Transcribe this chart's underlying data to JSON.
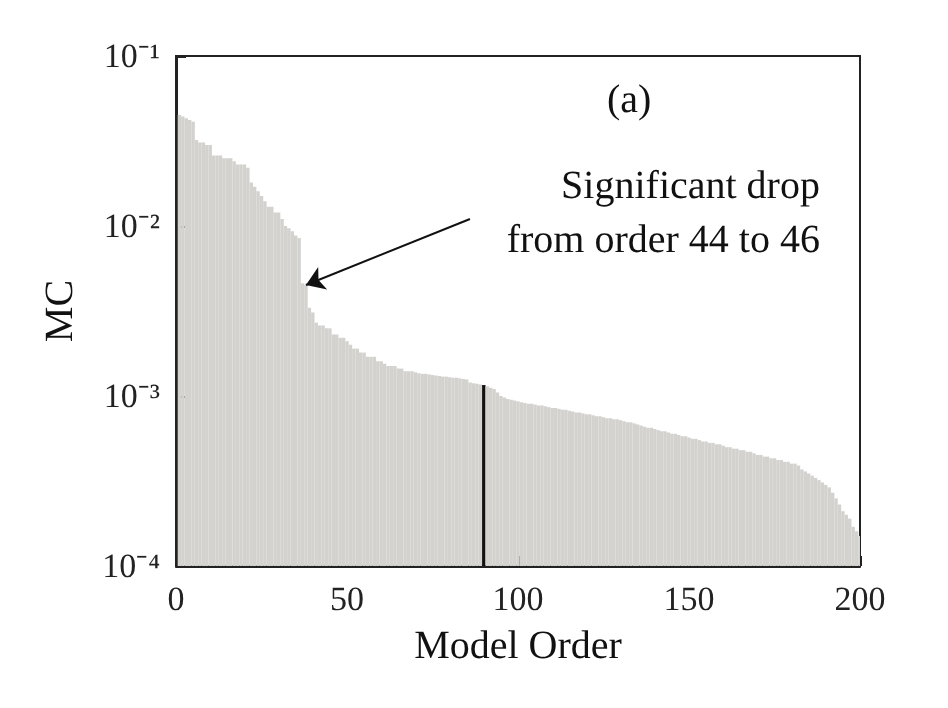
{
  "chart_data": {
    "type": "bar",
    "xlabel": "Model Order",
    "ylabel": "MC",
    "annotations": [
      "(a)",
      {
        "text": "Significant drop\nfrom order 44 to 46",
        "x": 38,
        "y": 0.0045
      }
    ],
    "x": [
      1,
      2,
      3,
      4,
      5,
      6,
      7,
      8,
      9,
      10,
      11,
      12,
      13,
      14,
      15,
      16,
      17,
      18,
      19,
      20,
      21,
      22,
      23,
      24,
      25,
      26,
      27,
      28,
      29,
      30,
      31,
      32,
      33,
      34,
      35,
      36,
      37,
      38,
      39,
      40,
      41,
      42,
      43,
      44,
      45,
      46,
      47,
      48,
      49,
      50,
      51,
      52,
      53,
      54,
      55,
      56,
      57,
      58,
      59,
      60,
      61,
      62,
      63,
      64,
      65,
      66,
      67,
      68,
      69,
      70,
      71,
      72,
      73,
      74,
      75,
      76,
      77,
      78,
      79,
      80,
      81,
      82,
      83,
      84,
      85,
      86,
      87,
      88,
      89,
      90,
      91,
      92,
      93,
      94,
      95,
      96,
      97,
      98,
      99,
      100,
      101,
      102,
      103,
      104,
      105,
      106,
      107,
      108,
      109,
      110,
      111,
      112,
      113,
      114,
      115,
      116,
      117,
      118,
      119,
      120,
      121,
      122,
      123,
      124,
      125,
      126,
      127,
      128,
      129,
      130,
      131,
      132,
      133,
      134,
      135,
      136,
      137,
      138,
      139,
      140,
      141,
      142,
      143,
      144,
      145,
      146,
      147,
      148,
      149,
      150,
      151,
      152,
      153,
      154,
      155,
      156,
      157,
      158,
      159,
      160,
      161,
      162,
      163,
      164,
      165,
      166,
      167,
      168,
      169,
      170,
      171,
      172,
      173,
      174,
      175,
      176,
      177,
      178,
      179,
      180,
      181,
      182,
      183,
      184,
      185,
      186,
      187,
      188,
      189,
      190,
      191,
      192,
      193,
      194,
      195,
      196,
      197,
      198,
      199,
      200
    ],
    "values": [
      0.045,
      0.044,
      0.043,
      0.042,
      0.041,
      0.032,
      0.031,
      0.031,
      0.03,
      0.03,
      0.026,
      0.026,
      0.026,
      0.025,
      0.025,
      0.025,
      0.024,
      0.023,
      0.023,
      0.023,
      0.022,
      0.018,
      0.017,
      0.016,
      0.015,
      0.014,
      0.013,
      0.013,
      0.012,
      0.012,
      0.011,
      0.01,
      0.0097,
      0.0093,
      0.0088,
      0.0085,
      0.0046,
      0.0045,
      0.0033,
      0.0031,
      0.0027,
      0.0026,
      0.0026,
      0.0025,
      0.0025,
      0.0023,
      0.0023,
      0.0022,
      0.0022,
      0.0021,
      0.002,
      0.0019,
      0.0019,
      0.0018,
      0.0018,
      0.0017,
      0.0017,
      0.0017,
      0.0016,
      0.0016,
      0.00155,
      0.0015,
      0.0015,
      0.0015,
      0.00145,
      0.00145,
      0.0014,
      0.0014,
      0.0014,
      0.00138,
      0.00136,
      0.00135,
      0.00135,
      0.00134,
      0.00133,
      0.00132,
      0.00131,
      0.0013,
      0.0013,
      0.00129,
      0.00128,
      0.00128,
      0.00127,
      0.00126,
      0.00125,
      0.0012,
      0.00119,
      0.00118,
      0.00117,
      0.00116,
      0.00114,
      0.00112,
      0.0011,
      0.00105,
      0.001,
      0.00098,
      0.00096,
      0.00095,
      0.00094,
      0.00093,
      0.00092,
      0.00091,
      0.0009,
      0.0009,
      0.00089,
      0.00088,
      0.00088,
      0.00087,
      0.00086,
      0.00085,
      0.00085,
      0.00084,
      0.00083,
      0.00083,
      0.00082,
      0.00081,
      0.0008,
      0.0008,
      0.00079,
      0.00078,
      0.00078,
      0.00077,
      0.00076,
      0.00076,
      0.00075,
      0.00074,
      0.00074,
      0.00073,
      0.00073,
      0.00072,
      0.00071,
      0.0007,
      0.0007,
      0.00069,
      0.00068,
      0.00067,
      0.00066,
      0.00065,
      0.00065,
      0.00064,
      0.00063,
      0.00062,
      0.00062,
      0.00061,
      0.0006,
      0.0006,
      0.00059,
      0.00058,
      0.00058,
      0.00057,
      0.00056,
      0.00056,
      0.00055,
      0.00054,
      0.00054,
      0.00053,
      0.00053,
      0.00052,
      0.00052,
      0.00051,
      0.0005,
      0.0005,
      0.00049,
      0.00049,
      0.00048,
      0.00048,
      0.00047,
      0.00047,
      0.00046,
      0.00045,
      0.00045,
      0.00044,
      0.00044,
      0.00043,
      0.00043,
      0.00042,
      0.00042,
      0.00041,
      0.00041,
      0.0004,
      0.0004,
      0.00039,
      0.00037,
      0.00036,
      0.00035,
      0.00034,
      0.00033,
      0.00032,
      0.00031,
      0.0003,
      0.00029,
      0.00027,
      0.00025,
      0.00023,
      0.00021,
      0.0002,
      0.00019,
      0.00017,
      0.00016,
      0.00015
    ],
    "colors": [
      "#d4d2ce",
      "#d4d2ce",
      "#d4d2ce",
      "#d4d2ce",
      "#d4d2ce",
      "#d4d2ce",
      "#d4d2ce",
      "#d4d2ce",
      "#d4d2ce",
      "#d4d2ce",
      "#d4d2ce",
      "#d4d2ce",
      "#d4d2ce",
      "#d4d2ce",
      "#d4d2ce",
      "#d4d2ce",
      "#d4d2ce",
      "#d4d2ce",
      "#d4d2ce",
      "#d4d2ce",
      "#d4d2ce",
      "#d4d2ce",
      "#d4d2ce",
      "#d4d2ce",
      "#d4d2ce",
      "#d4d2ce",
      "#d4d2ce",
      "#d4d2ce",
      "#d4d2ce",
      "#d4d2ce",
      "#d4d2ce",
      "#d4d2ce",
      "#d4d2ce",
      "#d4d2ce",
      "#d4d2ce",
      "#d4d2ce",
      "#d4d2ce",
      "#d4d2ce",
      "#d4d2ce",
      "#d4d2ce",
      "#d4d2ce",
      "#d4d2ce",
      "#d4d2ce",
      "#d4d2ce",
      "#d4d2ce",
      "#d4d2ce",
      "#d4d2ce",
      "#d4d2ce",
      "#d4d2ce",
      "#d4d2ce",
      "#d4d2ce",
      "#d4d2ce",
      "#d4d2ce",
      "#d4d2ce",
      "#d4d2ce",
      "#d4d2ce",
      "#d4d2ce",
      "#d4d2ce",
      "#d4d2ce",
      "#d4d2ce",
      "#d4d2ce",
      "#d4d2ce",
      "#d4d2ce",
      "#d4d2ce",
      "#d4d2ce",
      "#d4d2ce",
      "#d4d2ce",
      "#d4d2ce",
      "#d4d2ce",
      "#d4d2ce",
      "#d4d2ce",
      "#d4d2ce",
      "#d4d2ce",
      "#d4d2ce",
      "#d4d2ce",
      "#d4d2ce",
      "#d4d2ce",
      "#d4d2ce",
      "#d4d2ce",
      "#d4d2ce",
      "#d4d2ce",
      "#d4d2ce",
      "#d4d2ce",
      "#d4d2ce",
      "#d4d2ce",
      "#d4d2ce",
      "#d4d2ce",
      "#d4d2ce",
      "#d4d2ce",
      "#111111",
      "#d4d2ce",
      "#d4d2ce",
      "#d4d2ce",
      "#d4d2ce",
      "#d4d2ce",
      "#d4d2ce",
      "#d4d2ce",
      "#d4d2ce",
      "#d4d2ce",
      "#d4d2ce",
      "#d4d2ce",
      "#d4d2ce",
      "#d4d2ce",
      "#d4d2ce",
      "#d4d2ce",
      "#d4d2ce",
      "#d4d2ce",
      "#d4d2ce",
      "#d4d2ce",
      "#d4d2ce",
      "#d4d2ce",
      "#d4d2ce",
      "#d4d2ce",
      "#d4d2ce",
      "#d4d2ce",
      "#d4d2ce",
      "#d4d2ce",
      "#d4d2ce",
      "#d4d2ce",
      "#d4d2ce",
      "#d4d2ce",
      "#d4d2ce",
      "#d4d2ce",
      "#d4d2ce",
      "#d4d2ce",
      "#d4d2ce",
      "#d4d2ce",
      "#d4d2ce",
      "#d4d2ce",
      "#d4d2ce",
      "#d4d2ce",
      "#d4d2ce",
      "#d4d2ce",
      "#d4d2ce",
      "#d4d2ce",
      "#d4d2ce",
      "#d4d2ce",
      "#d4d2ce",
      "#d4d2ce",
      "#d4d2ce",
      "#d4d2ce",
      "#d4d2ce",
      "#d4d2ce",
      "#d4d2ce",
      "#d4d2ce",
      "#d4d2ce",
      "#d4d2ce",
      "#d4d2ce",
      "#d4d2ce",
      "#d4d2ce",
      "#d4d2ce",
      "#d4d2ce",
      "#d4d2ce",
      "#d4d2ce",
      "#d4d2ce",
      "#d4d2ce",
      "#d4d2ce",
      "#d4d2ce",
      "#d4d2ce",
      "#d4d2ce",
      "#d4d2ce",
      "#d4d2ce",
      "#d4d2ce",
      "#d4d2ce",
      "#d4d2ce",
      "#d4d2ce",
      "#d4d2ce",
      "#d4d2ce",
      "#d4d2ce",
      "#d4d2ce",
      "#d4d2ce",
      "#d4d2ce",
      "#d4d2ce",
      "#d4d2ce",
      "#d4d2ce",
      "#d4d2ce",
      "#d4d2ce",
      "#d4d2ce",
      "#d4d2ce",
      "#d4d2ce",
      "#d4d2ce",
      "#d4d2ce",
      "#d4d2ce",
      "#d4d2ce",
      "#d4d2ce",
      "#d4d2ce",
      "#d4d2ce",
      "#d4d2ce",
      "#d4d2ce",
      "#d4d2ce",
      "#d4d2ce",
      "#d4d2ce",
      "#d4d2ce",
      "#d4d2ce",
      "#d4d2ce",
      "#d4d2ce",
      "#d4d2ce",
      "#d4d2ce",
      "#d4d2ce",
      "#d4d2ce"
    ],
    "xlim": [
      0,
      200
    ],
    "xticks": [
      0,
      50,
      100,
      150,
      200
    ],
    "log": "y",
    "ylim": [
      0.0001,
      0.1
    ],
    "yticks": [
      {
        "value": 0.0001,
        "label": "10⁻⁴"
      },
      {
        "value": 0.001,
        "label": "10⁻³"
      },
      {
        "value": 0.01,
        "label": "10⁻²"
      },
      {
        "value": 0.1,
        "label": "10⁻¹"
      }
    ]
  }
}
